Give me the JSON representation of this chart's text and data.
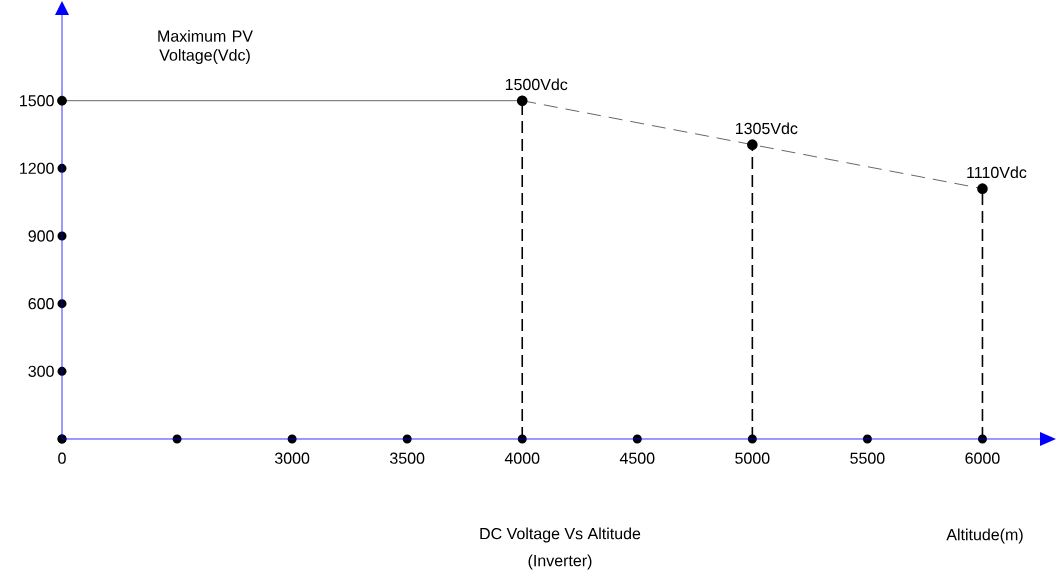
{
  "chart_data": {
    "type": "line",
    "title": "DC Voltage Vs Altitude",
    "subtitle": "(Inverter)",
    "xlabel": "Altitude(m)",
    "ylabel": "Maximum PV Voltage(Vdc)",
    "categories": [
      "0",
      null,
      "3000",
      "3500",
      "4000",
      "4500",
      "5000",
      "5500",
      "6000"
    ],
    "ylim": [
      0,
      1880
    ],
    "yticks": [
      {
        "value": 0,
        "label": null
      },
      300,
      600,
      900,
      1200,
      1500
    ],
    "grid": false,
    "series": [
      {
        "color": "#000000",
        "line_style": "solid",
        "marker": "circle",
        "values": [
          1500,
          null,
          null,
          null,
          1500,
          null,
          null,
          null,
          null
        ]
      },
      {
        "color": "#000000",
        "line_style": "dashed",
        "marker": "none",
        "values": [
          null,
          null,
          null,
          null,
          1500,
          null,
          1305,
          null,
          1110
        ]
      },
      {
        "type": "lollipop",
        "color": "#000000",
        "line_style": "dashed",
        "marker": "circle",
        "values": [
          null,
          null,
          null,
          null,
          1500,
          null,
          1305,
          null,
          1110
        ],
        "value_labels": [
          null,
          null,
          null,
          null,
          "1500Vdc",
          null,
          "1305Vdc",
          null,
          "1110Vdc"
        ]
      }
    ]
  }
}
